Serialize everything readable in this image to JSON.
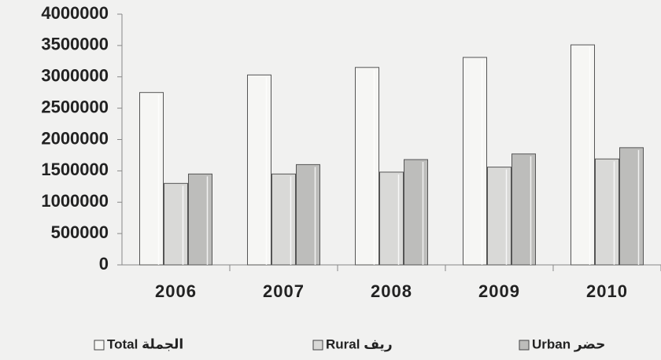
{
  "chart_data": {
    "type": "bar",
    "categories": [
      "2006",
      "2007",
      "2008",
      "2009",
      "2010"
    ],
    "series": [
      {
        "name": "Total الجملة",
        "color": "#f6f6f4",
        "values": [
          2750000,
          3030000,
          3150000,
          3310000,
          3510000
        ]
      },
      {
        "name": "Rural ريف",
        "color": "#d9d9d7",
        "values": [
          1300000,
          1450000,
          1480000,
          1560000,
          1690000
        ]
      },
      {
        "name": "Urban حضر",
        "color": "#bdbdbb",
        "values": [
          1450000,
          1600000,
          1680000,
          1770000,
          1870000
        ]
      }
    ],
    "ylim": [
      0,
      4000000
    ],
    "yticks": [
      0,
      500000,
      1000000,
      1500000,
      2000000,
      2500000,
      3000000,
      3500000,
      4000000
    ],
    "grid": false,
    "legend": "bottom"
  }
}
